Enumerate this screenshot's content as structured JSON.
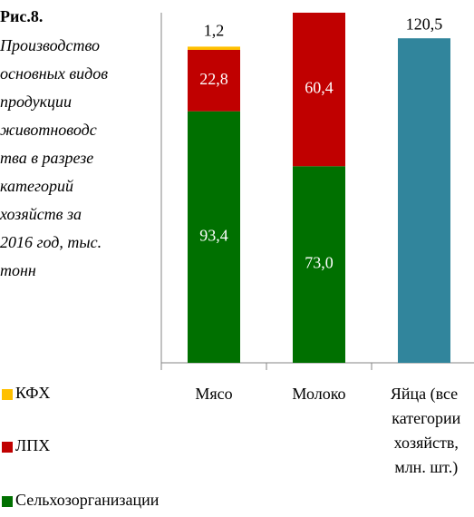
{
  "chart_data": {
    "type": "stacked_bar",
    "title": "Рис.8.",
    "subtitle_lines": [
      "Производство",
      "основных видов",
      "продукции",
      "животноводс",
      "тва в разрезе",
      "категорий",
      "хозяйств за",
      "2016 год, тыс.",
      "тонн"
    ],
    "categories": [
      "Мясо",
      "Молоко",
      "Яйца (все категории хозяйств, млн. шт.)"
    ],
    "series": [
      {
        "name": "Сельхозорганизации",
        "color": "#007000",
        "values": [
          93.4,
          73.0,
          null
        ],
        "value_labels": [
          "93,4",
          "73,0",
          null
        ]
      },
      {
        "name": "ЛПХ",
        "color": "#c00000",
        "values": [
          22.8,
          60.4,
          null
        ],
        "value_labels": [
          "22,8",
          "60,4",
          null
        ]
      },
      {
        "name": "КФХ",
        "color": "#ffc000",
        "values": [
          1.2,
          null,
          null
        ],
        "value_labels": [
          "1,2",
          null,
          null
        ]
      }
    ],
    "other_bar": {
      "color": "#31859c",
      "values": [
        null,
        null,
        120.5
      ],
      "value_labels": [
        null,
        null,
        "120,5"
      ]
    },
    "ylim": [
      0,
      130
    ]
  }
}
